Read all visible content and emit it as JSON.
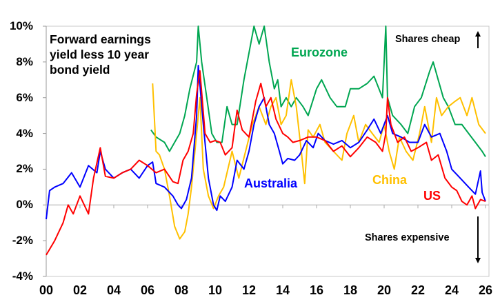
{
  "chart_data": {
    "type": "line",
    "title": "Forward earnings yield less 10 year bond yield",
    "title_lines": [
      "Forward earnings",
      "yield less 10 year",
      "bond yield"
    ],
    "xlabel": "",
    "ylabel": "",
    "xlim": [
      2000,
      2026
    ],
    "ylim": [
      -4,
      10
    ],
    "x_tick_values": [
      2000,
      2002,
      2004,
      2006,
      2008,
      2010,
      2012,
      2014,
      2016,
      2018,
      2020,
      2022,
      2024,
      2026
    ],
    "x_tick_labels": [
      "00",
      "02",
      "04",
      "06",
      "08",
      "10",
      "12",
      "14",
      "16",
      "18",
      "20",
      "22",
      "24",
      "26"
    ],
    "y_tick_values": [
      -4,
      -2,
      0,
      2,
      4,
      6,
      8,
      10
    ],
    "y_tick_labels": [
      "-4%",
      "-2%",
      "0%",
      "2%",
      "4%",
      "6%",
      "8%",
      "10%"
    ],
    "grid": false,
    "annotations": {
      "cheap": "Shares cheap",
      "expensive": "Shares expensive"
    },
    "series": [
      {
        "name": "Australia",
        "color": "#0000ff",
        "points": [
          [
            2000,
            -0.8
          ],
          [
            2000.2,
            0.8
          ],
          [
            2000.5,
            1.0
          ],
          [
            2001,
            1.2
          ],
          [
            2001.5,
            1.8
          ],
          [
            2002,
            1.0
          ],
          [
            2002.5,
            2.2
          ],
          [
            2003,
            1.8
          ],
          [
            2003.2,
            3.0
          ],
          [
            2003.5,
            2.0
          ],
          [
            2004,
            1.5
          ],
          [
            2004.5,
            1.8
          ],
          [
            2005,
            2.0
          ],
          [
            2005.5,
            1.5
          ],
          [
            2006,
            2.2
          ],
          [
            2006.3,
            2.4
          ],
          [
            2006.5,
            1.2
          ],
          [
            2007,
            1.0
          ],
          [
            2007.5,
            0.5
          ],
          [
            2007.8,
            0.0
          ],
          [
            2008,
            -0.2
          ],
          [
            2008.3,
            0.3
          ],
          [
            2008.6,
            1.5
          ],
          [
            2008.9,
            5.0
          ],
          [
            2009.0,
            7.8
          ],
          [
            2009.3,
            4.5
          ],
          [
            2009.6,
            1.5
          ],
          [
            2009.9,
            0.0
          ],
          [
            2010.1,
            -0.3
          ],
          [
            2010.3,
            0.5
          ],
          [
            2010.6,
            0.2
          ],
          [
            2011,
            1.0
          ],
          [
            2011.3,
            2.5
          ],
          [
            2011.7,
            2.0
          ],
          [
            2012,
            3.0
          ],
          [
            2012.3,
            4.5
          ],
          [
            2012.6,
            5.5
          ],
          [
            2012.9,
            6.0
          ],
          [
            2013.2,
            4.5
          ],
          [
            2013.5,
            4.0
          ],
          [
            2013.8,
            3.0
          ],
          [
            2014.0,
            2.3
          ],
          [
            2014.3,
            2.6
          ],
          [
            2014.7,
            2.5
          ],
          [
            2015,
            2.8
          ],
          [
            2015.4,
            3.6
          ],
          [
            2015.8,
            3.2
          ],
          [
            2016.1,
            4.0
          ],
          [
            2016.5,
            3.6
          ],
          [
            2017,
            3.4
          ],
          [
            2017.5,
            3.6
          ],
          [
            2018,
            3.2
          ],
          [
            2018.5,
            3.5
          ],
          [
            2019,
            4.2
          ],
          [
            2019.4,
            4.8
          ],
          [
            2019.8,
            4.0
          ],
          [
            2020.2,
            5.0
          ],
          [
            2020.5,
            4.0
          ],
          [
            2021,
            3.8
          ],
          [
            2021.5,
            3.5
          ],
          [
            2022,
            3.5
          ],
          [
            2022.4,
            4.5
          ],
          [
            2022.8,
            3.8
          ],
          [
            2023.3,
            4.0
          ],
          [
            2023.7,
            3.0
          ],
          [
            2024,
            2.0
          ],
          [
            2024.5,
            1.5
          ],
          [
            2025,
            1.0
          ],
          [
            2025.4,
            0.6
          ],
          [
            2025.7,
            1.9
          ],
          [
            2025.8,
            0.7
          ],
          [
            2026,
            0.2
          ]
        ]
      },
      {
        "name": "US",
        "color": "#ff0000",
        "points": [
          [
            2000,
            -2.8
          ],
          [
            2000.5,
            -2.0
          ],
          [
            2001,
            -1.0
          ],
          [
            2001.3,
            0.0
          ],
          [
            2001.6,
            -0.5
          ],
          [
            2002,
            0.5
          ],
          [
            2002.5,
            -0.5
          ],
          [
            2002.8,
            1.5
          ],
          [
            2003.2,
            3.2
          ],
          [
            2003.5,
            1.6
          ],
          [
            2004,
            1.5
          ],
          [
            2004.5,
            1.8
          ],
          [
            2005,
            2.0
          ],
          [
            2005.5,
            2.5
          ],
          [
            2006,
            2.2
          ],
          [
            2006.5,
            1.8
          ],
          [
            2007,
            2.0
          ],
          [
            2007.5,
            1.3
          ],
          [
            2007.8,
            1.2
          ],
          [
            2008.1,
            2.5
          ],
          [
            2008.4,
            3.0
          ],
          [
            2008.7,
            4.0
          ],
          [
            2008.9,
            6.2
          ],
          [
            2009.1,
            7.5
          ],
          [
            2009.4,
            4.0
          ],
          [
            2009.7,
            3.5
          ],
          [
            2010,
            3.6
          ],
          [
            2010.3,
            3.5
          ],
          [
            2010.6,
            2.8
          ],
          [
            2011,
            3.2
          ],
          [
            2011.3,
            5.3
          ],
          [
            2011.6,
            4.2
          ],
          [
            2012,
            3.8
          ],
          [
            2012.4,
            5.8
          ],
          [
            2012.7,
            6.8
          ],
          [
            2013,
            5.5
          ],
          [
            2013.3,
            6.0
          ],
          [
            2013.6,
            4.8
          ],
          [
            2014,
            4.0
          ],
          [
            2014.3,
            3.8
          ],
          [
            2014.6,
            3.5
          ],
          [
            2015,
            3.6
          ],
          [
            2015.5,
            3.8
          ],
          [
            2016,
            3.8
          ],
          [
            2016.5,
            3.6
          ],
          [
            2017,
            3.0
          ],
          [
            2017.5,
            3.3
          ],
          [
            2018,
            2.7
          ],
          [
            2018.5,
            3.2
          ],
          [
            2019,
            3.8
          ],
          [
            2019.5,
            3.5
          ],
          [
            2019.9,
            3.0
          ],
          [
            2020.1,
            4.0
          ],
          [
            2020.2,
            6.0
          ],
          [
            2020.4,
            4.5
          ],
          [
            2020.8,
            3.5
          ],
          [
            2021.2,
            3.8
          ],
          [
            2021.6,
            3.0
          ],
          [
            2022,
            3.2
          ],
          [
            2022.5,
            3.5
          ],
          [
            2022.8,
            2.5
          ],
          [
            2023.2,
            2.8
          ],
          [
            2023.6,
            1.5
          ],
          [
            2024,
            1.0
          ],
          [
            2024.3,
            0.8
          ],
          [
            2024.6,
            0.2
          ],
          [
            2024.9,
            0.0
          ],
          [
            2025.2,
            0.5
          ],
          [
            2025.4,
            -0.2
          ],
          [
            2025.7,
            0.3
          ],
          [
            2026,
            0.2
          ]
        ]
      },
      {
        "name": "Eurozone",
        "color": "#00a651",
        "points": [
          [
            2006.2,
            4.2
          ],
          [
            2006.5,
            3.8
          ],
          [
            2007,
            3.5
          ],
          [
            2007.3,
            3.0
          ],
          [
            2007.6,
            3.5
          ],
          [
            2007.9,
            4.0
          ],
          [
            2008.2,
            5.0
          ],
          [
            2008.5,
            6.5
          ],
          [
            2008.9,
            8.0
          ],
          [
            2009.0,
            10.0
          ],
          [
            2009.2,
            8.0
          ],
          [
            2009.5,
            6.0
          ],
          [
            2009.8,
            4.0
          ],
          [
            2010.1,
            3.5
          ],
          [
            2010.4,
            3.5
          ],
          [
            2010.7,
            5.5
          ],
          [
            2011.0,
            4.5
          ],
          [
            2011.3,
            4.5
          ],
          [
            2011.7,
            7.0
          ],
          [
            2012,
            8.5
          ],
          [
            2012.3,
            10.0
          ],
          [
            2012.6,
            9.0
          ],
          [
            2012.9,
            10.0
          ],
          [
            2013.2,
            8.0
          ],
          [
            2013.5,
            6.5
          ],
          [
            2013.7,
            7.0
          ],
          [
            2013.9,
            5.5
          ],
          [
            2014.2,
            6.0
          ],
          [
            2014.5,
            5.5
          ],
          [
            2014.8,
            6.0
          ],
          [
            2015.2,
            5.5
          ],
          [
            2015.5,
            5.0
          ],
          [
            2016,
            6.5
          ],
          [
            2016.3,
            7.0
          ],
          [
            2016.8,
            6.0
          ],
          [
            2017.2,
            5.5
          ],
          [
            2017.7,
            5.5
          ],
          [
            2018,
            6.5
          ],
          [
            2018.5,
            6.5
          ],
          [
            2019,
            6.8
          ],
          [
            2019.4,
            7.2
          ],
          [
            2019.9,
            6.0
          ],
          [
            2020.1,
            10.0
          ],
          [
            2020.2,
            6.0
          ],
          [
            2020.5,
            5.0
          ],
          [
            2021,
            4.5
          ],
          [
            2021.4,
            4.0
          ],
          [
            2021.8,
            5.5
          ],
          [
            2022.2,
            6.0
          ],
          [
            2022.7,
            7.5
          ],
          [
            2022.9,
            8.0
          ],
          [
            2023.2,
            7.0
          ],
          [
            2023.5,
            6.0
          ],
          [
            2023.8,
            5.5
          ],
          [
            2024.2,
            4.5
          ],
          [
            2024.6,
            4.5
          ],
          [
            2025,
            4.0
          ],
          [
            2025.4,
            3.5
          ],
          [
            2025.8,
            3.0
          ],
          [
            2026,
            2.7
          ]
        ]
      },
      {
        "name": "China",
        "color": "#ffc000",
        "points": [
          [
            2006.3,
            6.8
          ],
          [
            2006.5,
            3.0
          ],
          [
            2006.7,
            2.8
          ],
          [
            2007,
            2.0
          ],
          [
            2007.3,
            0.5
          ],
          [
            2007.6,
            -1.2
          ],
          [
            2007.9,
            -1.9
          ],
          [
            2008.2,
            -1.5
          ],
          [
            2008.4,
            -0.5
          ],
          [
            2008.6,
            1.0
          ],
          [
            2008.9,
            4.0
          ],
          [
            2009.1,
            6.0
          ],
          [
            2009.3,
            2.0
          ],
          [
            2009.6,
            0.5
          ],
          [
            2009.9,
            -0.2
          ],
          [
            2010.2,
            0.5
          ],
          [
            2010.5,
            1.0
          ],
          [
            2011,
            3.0
          ],
          [
            2011.4,
            1.5
          ],
          [
            2011.8,
            3.0
          ],
          [
            2012.2,
            4.5
          ],
          [
            2012.6,
            5.5
          ],
          [
            2013,
            4.5
          ],
          [
            2013.3,
            5.5
          ],
          [
            2013.6,
            6.0
          ],
          [
            2013.9,
            4.5
          ],
          [
            2014.2,
            5.0
          ],
          [
            2014.5,
            7.0
          ],
          [
            2014.8,
            5.5
          ],
          [
            2015.1,
            3.0
          ],
          [
            2015.3,
            1.2
          ],
          [
            2015.5,
            4.2
          ],
          [
            2015.8,
            3.8
          ],
          [
            2016.2,
            4.5
          ],
          [
            2016.5,
            3.5
          ],
          [
            2017,
            3.0
          ],
          [
            2017.5,
            2.5
          ],
          [
            2017.8,
            4.0
          ],
          [
            2018.2,
            5.0
          ],
          [
            2018.5,
            3.5
          ],
          [
            2018.9,
            4.5
          ],
          [
            2019.3,
            4.0
          ],
          [
            2019.7,
            3.5
          ],
          [
            2020,
            4.5
          ],
          [
            2020.3,
            3.0
          ],
          [
            2020.6,
            2.0
          ],
          [
            2020.9,
            3.8
          ],
          [
            2021.3,
            3.0
          ],
          [
            2021.7,
            2.5
          ],
          [
            2022.1,
            4.0
          ],
          [
            2022.4,
            5.5
          ],
          [
            2022.8,
            3.5
          ],
          [
            2023.1,
            6.0
          ],
          [
            2023.4,
            5.0
          ],
          [
            2023.8,
            5.5
          ],
          [
            2024.2,
            5.8
          ],
          [
            2024.5,
            6.0
          ],
          [
            2024.9,
            5.0
          ],
          [
            2025.2,
            6.0
          ],
          [
            2025.6,
            4.5
          ],
          [
            2026,
            4.0
          ]
        ]
      }
    ]
  }
}
